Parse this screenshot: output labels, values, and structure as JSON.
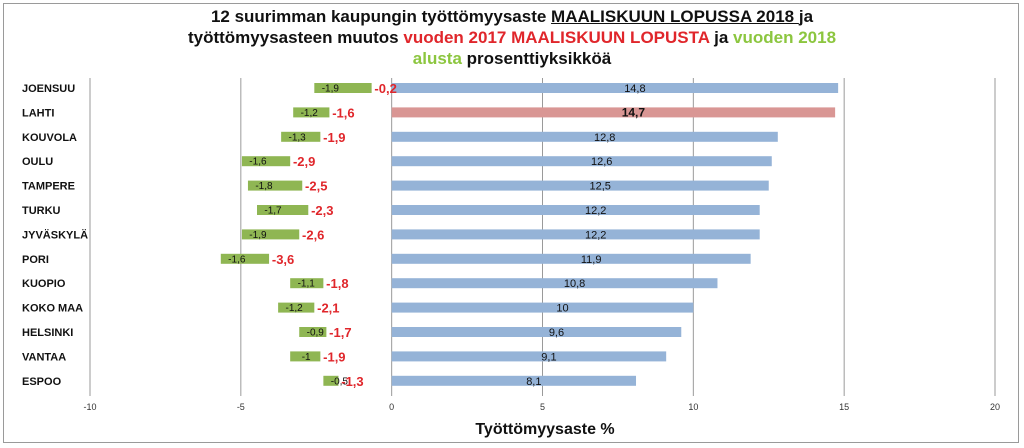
{
  "title": {
    "line1_part1": "12 suurimman kaupungin työttömyysaste ",
    "line1_part2": "MAALISKUUN LOPUSSA 2018 ",
    "line1_part3": " ja",
    "line2_part1": "työttömyysasteen muutos ",
    "line2_part2": "vuoden 2017 MAALISKUUN LOPUSTA",
    "line2_part3": " ja ",
    "line2_part4": "vuoden 2018",
    "line3_part1": "alusta",
    "line3_part2": " prosenttiyksikköä"
  },
  "colors": {
    "rate_bar": "#95b3d7",
    "highlight_bar": "#d99694",
    "change_bar": "#8fb653",
    "yoy_text": "#e0262b",
    "grid": "#9a9a9a"
  },
  "chart_data": {
    "type": "bar",
    "orientation": "horizontal",
    "xlabel": "Työttömyysaste %",
    "xlim": [
      -10,
      20
    ],
    "xticks": [
      -10,
      -5,
      0,
      5,
      10,
      15,
      20
    ],
    "grid": "vertical",
    "categories": [
      "JOENSUU",
      "LAHTI",
      "KOUVOLA",
      "OULU",
      "TAMPERE",
      "TURKU",
      "JYVÄSKYLÄ",
      "PORI",
      "KUOPIO",
      "KOKO MAA",
      "HELSINKI",
      "VANTAA",
      "ESPOO"
    ],
    "highlight_index": 1,
    "series": [
      {
        "values": [
          14.8,
          14.7,
          12.8,
          12.6,
          12.5,
          12.2,
          12.2,
          11.9,
          10.8,
          10,
          9.6,
          9.1,
          8.1
        ],
        "labels": [
          "14,8",
          "14,7",
          "12,8",
          "12,6",
          "12,5",
          "12,2",
          "12,2",
          "11,9",
          "10,8",
          "10",
          "9,6",
          "9,1",
          "8,1"
        ]
      },
      {
        "values": [
          -1.9,
          -1.2,
          -1.3,
          -1.6,
          -1.8,
          -1.7,
          -1.9,
          -1.6,
          -1.1,
          -1.2,
          -0.9,
          -1,
          -0.5
        ],
        "labels": [
          "-1,9",
          "-1,2",
          "-1,3",
          "-1,6",
          "-1,8",
          "-1,7",
          "-1,9",
          "-1,6",
          "-1,1",
          "-1,2",
          "-0,9",
          "-1",
          "-0,5"
        ]
      },
      {
        "values": [
          -0.2,
          -1.6,
          -1.9,
          -2.9,
          -2.5,
          -2.3,
          -2.6,
          -3.6,
          -1.8,
          -2.1,
          -1.7,
          -1.9,
          -1.3
        ],
        "labels": [
          "-0,2",
          "-1,6",
          "-1,9",
          "-2,9",
          "-2,5",
          "-2,3",
          "-2,6",
          "-3,6",
          "-1,8",
          "-2,1",
          "-1,7",
          "-1,9",
          "-1,3"
        ]
      }
    ]
  }
}
